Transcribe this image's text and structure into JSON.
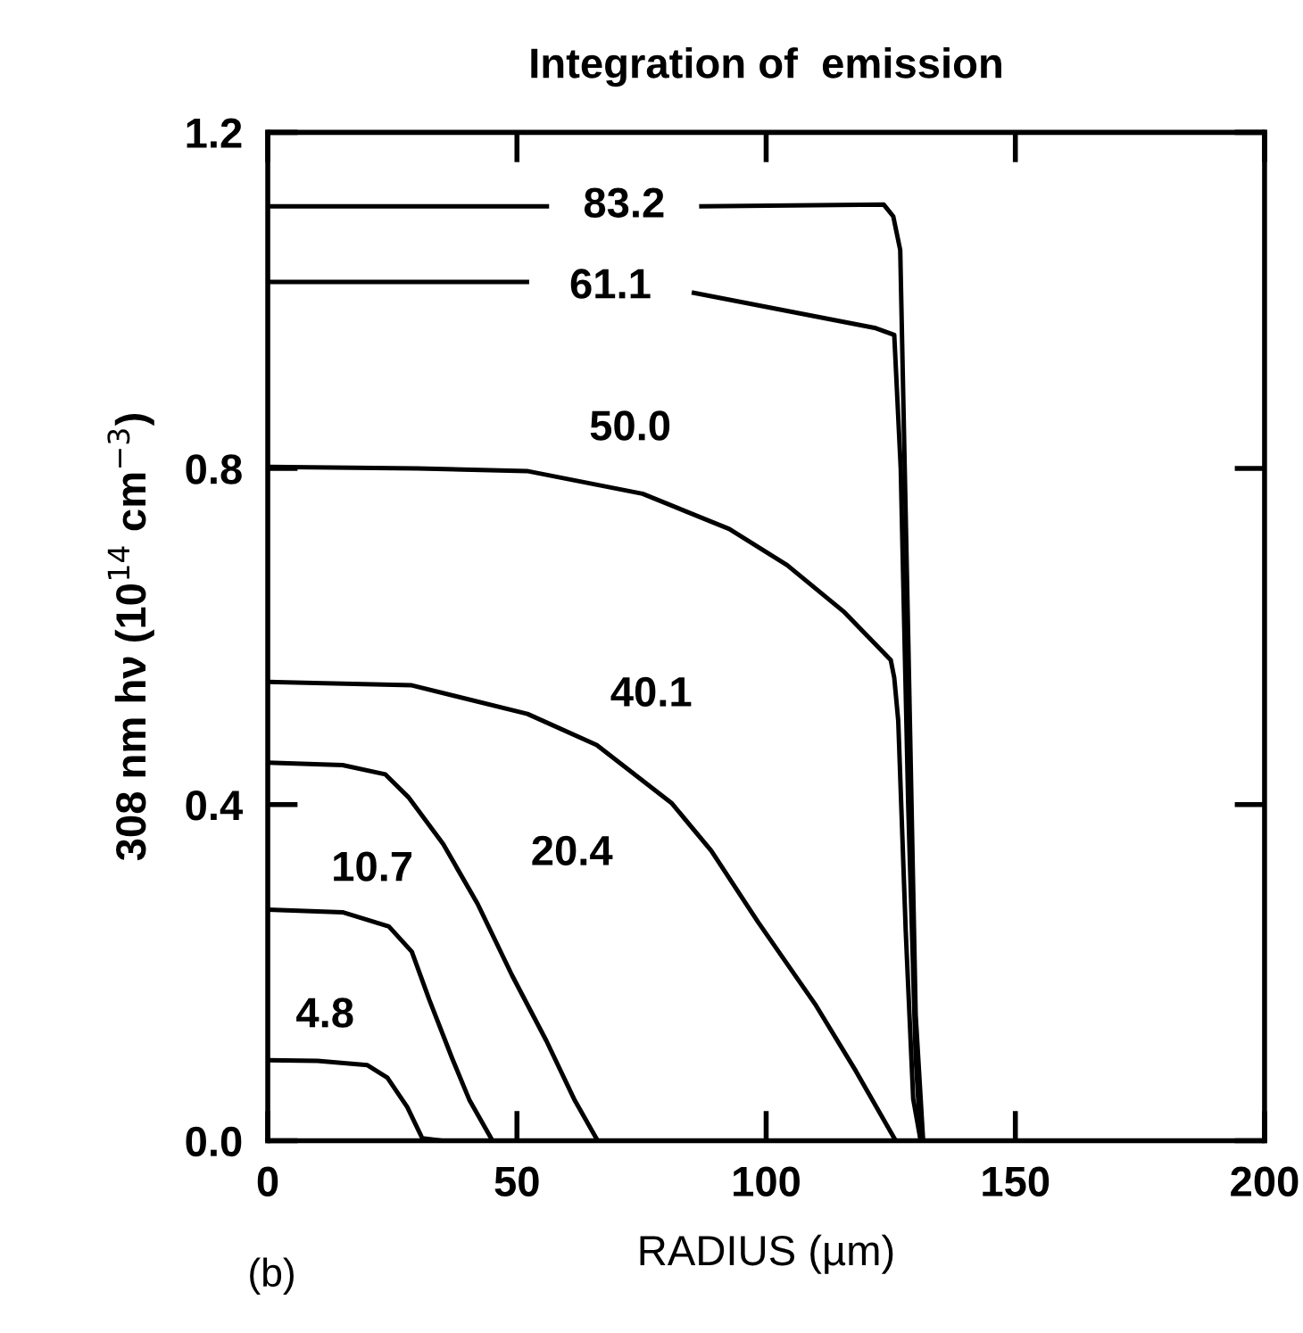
{
  "chart_data": {
    "type": "line",
    "title": "Integration of  emission",
    "xlabel": "RADIUS (µm)",
    "ylabel": "308 nm hν (10$^{14}$ cm$^{−3}$)",
    "annotations": [
      "(b)"
    ],
    "xlim": [
      0,
      200
    ],
    "xticks": [
      0,
      50,
      100,
      150,
      200
    ],
    "ylim": [
      0,
      1.2
    ],
    "yticks": [
      {
        "value": 0,
        "label": "0.0"
      },
      {
        "value": 0.4,
        "label": "0.4"
      },
      {
        "value": 0.8,
        "label": "0.8"
      },
      {
        "value": 1.2,
        "label": "1.2"
      }
    ],
    "grid": false,
    "legend": false,
    "marker": "none",
    "line_style": "solid",
    "series": [
      {
        "name": "4.8",
        "color": "#000000",
        "x": [
          0,
          10,
          20,
          24,
          28,
          31,
          35,
          200
        ],
        "values": [
          0.096,
          0.095,
          0.09,
          0.075,
          0.04,
          0.003,
          0,
          0
        ]
      },
      {
        "name": "10.7",
        "color": "#000000",
        "x": [
          0,
          15,
          24.3,
          28.9,
          32.4,
          37,
          40.5,
          45.1,
          200
        ],
        "values": [
          0.275,
          0.272,
          0.255,
          0.225,
          0.168,
          0.098,
          0.048,
          0,
          0
        ]
      },
      {
        "name": "20.4",
        "color": "#000000",
        "x": [
          0,
          15,
          23.6,
          28.2,
          35.2,
          42.1,
          49,
          55.9,
          61.6,
          66.2,
          200
        ],
        "values": [
          0.45,
          0.447,
          0.436,
          0.409,
          0.353,
          0.282,
          0.197,
          0.119,
          0.048,
          0,
          0
        ]
      },
      {
        "name": "40.1",
        "color": "#000000",
        "x": [
          0,
          28.9,
          52.1,
          66,
          81,
          89,
          98.4,
          110,
          118,
          126,
          200
        ],
        "values": [
          0.546,
          0.542,
          0.508,
          0.471,
          0.402,
          0.345,
          0.26,
          0.161,
          0.083,
          0,
          0
        ]
      },
      {
        "name": "50.0",
        "color": "#000000",
        "x": [
          0,
          30,
          52,
          75.2,
          92.6,
          104.2,
          115.7,
          125,
          125.7,
          126.5,
          128,
          129.5,
          131,
          200
        ],
        "values": [
          0.802,
          0.8,
          0.797,
          0.77,
          0.728,
          0.685,
          0.629,
          0.572,
          0.551,
          0.5,
          0.25,
          0.05,
          0,
          0
        ]
      },
      {
        "name": "61.1",
        "color": "#000000",
        "x": [
          0,
          52,
          70,
          85.5,
          122,
          125.7,
          127,
          128.5,
          130,
          131,
          200
        ],
        "values": [
          1.022,
          1.022,
          null,
          1.009,
          0.967,
          0.959,
          0.8,
          0.4,
          0.1,
          0,
          0
        ]
      },
      {
        "name": "83.2",
        "color": "#000000",
        "x": [
          0,
          56,
          70,
          87,
          123.6,
          125.5,
          126.9,
          128.5,
          130,
          131.5,
          200
        ],
        "values": [
          1.112,
          1.112,
          null,
          1.112,
          1.114,
          1.1,
          1.06,
          0.6,
          0.15,
          0,
          0
        ]
      }
    ]
  }
}
